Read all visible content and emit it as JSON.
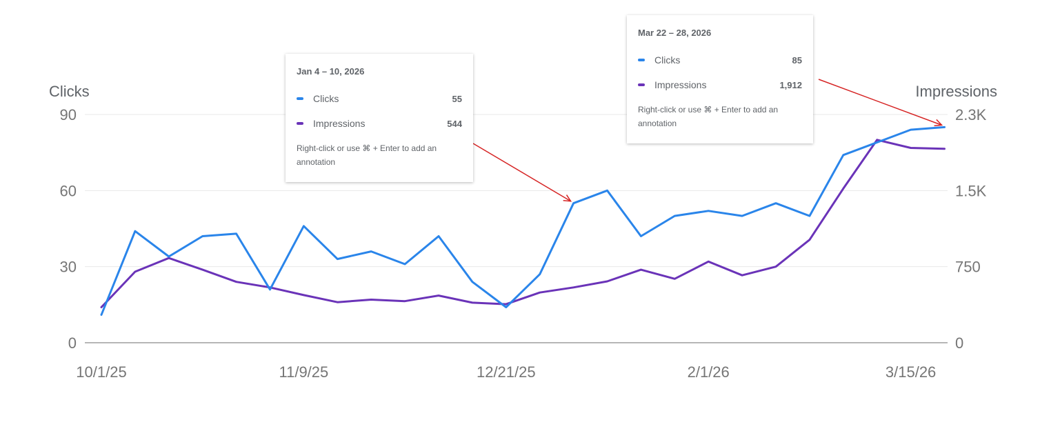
{
  "chart_data": {
    "type": "line",
    "x_ticks": [
      "10/1/25",
      "11/9/25",
      "12/21/25",
      "2/1/26",
      "3/15/26"
    ],
    "y_left": {
      "title": "Clicks",
      "ticks": [
        "0",
        "30",
        "60",
        "90"
      ],
      "range": [
        0,
        90
      ]
    },
    "y_right": {
      "title": "Impressions",
      "ticks": [
        "0",
        "750",
        "1.5K",
        "2.3K"
      ],
      "range": [
        0,
        2250
      ]
    },
    "series": [
      {
        "name": "Clicks",
        "axis": "left",
        "color": "#2a85ea",
        "values": [
          11,
          44,
          34,
          42,
          43,
          21,
          46,
          33,
          36,
          31,
          42,
          24,
          14,
          27,
          55,
          60,
          42,
          50,
          52,
          50,
          55,
          50,
          74,
          79,
          84,
          85
        ]
      },
      {
        "name": "Impressions",
        "axis": "right",
        "color": "#6a33b8",
        "values": [
          350,
          700,
          835,
          720,
          600,
          545,
          470,
          400,
          425,
          410,
          465,
          395,
          380,
          495,
          545,
          605,
          720,
          630,
          800,
          665,
          750,
          1015,
          1520,
          2000,
          1920,
          1912
        ]
      }
    ],
    "grid": true
  },
  "tooltips": [
    {
      "date": "Jan 4 – 10, 2026",
      "rows": [
        {
          "name": "Clicks",
          "value": "55",
          "color": "#2a85ea"
        },
        {
          "name": "Impressions",
          "value": "544",
          "color": "#6a33b8"
        }
      ],
      "hint": "Right-click or use ⌘ + Enter to add an annotation"
    },
    {
      "date": "Mar 22 – 28, 2026",
      "rows": [
        {
          "name": "Clicks",
          "value": "85",
          "color": "#2a85ea"
        },
        {
          "name": "Impressions",
          "value": "1,912",
          "color": "#6a33b8"
        }
      ],
      "hint": "Right-click or use ⌘ + Enter to add an annotation"
    }
  ],
  "colors": {
    "arrow": "#d62424",
    "grid": "#e8e8e8",
    "baseline": "#9e9e9e"
  }
}
